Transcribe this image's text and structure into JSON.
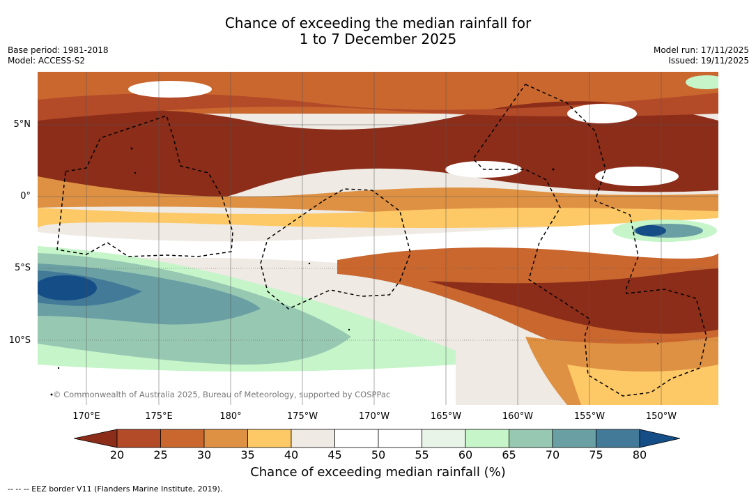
{
  "title": {
    "line1": "Chance of exceeding the median rainfall for",
    "line2": "1 to 7 December 2025"
  },
  "meta_left": {
    "base_period": "Base period: 1981-2018",
    "model": "Model: ACCESS-S2"
  },
  "meta_right": {
    "model_run": "Model run: 17/11/2025",
    "issued": "Issued: 19/11/2025"
  },
  "map": {
    "copyright": "© Commonwealth of Australia 2025, Bureau of Meteorology, supported by COSPPac",
    "lat_labels": [
      "5°N",
      "0°",
      "5°S",
      "10°S"
    ],
    "lon_labels": [
      "170°E",
      "175°E",
      "180°",
      "175°W",
      "170°W",
      "165°W",
      "160°W",
      "155°W",
      "150°W"
    ]
  },
  "colorbar": {
    "ticks": [
      "20",
      "25",
      "30",
      "35",
      "40",
      "45",
      "50",
      "55",
      "60",
      "65",
      "70",
      "75",
      "80"
    ],
    "colors": [
      "#8c2d1a",
      "#b34a28",
      "#c9672f",
      "#df9143",
      "#fdc866",
      "#efeae4",
      "#ffffff",
      "#ffffff",
      "#e8f4e8",
      "#c5f5c9",
      "#96c8b2",
      "#6a9fa4",
      "#427a98",
      "#154d86"
    ],
    "title": "Chance of exceeding median rainfall (%)"
  },
  "footnote": "--  --  -- EEZ border V11 (Flanders Marine Institute, 2019)."
}
